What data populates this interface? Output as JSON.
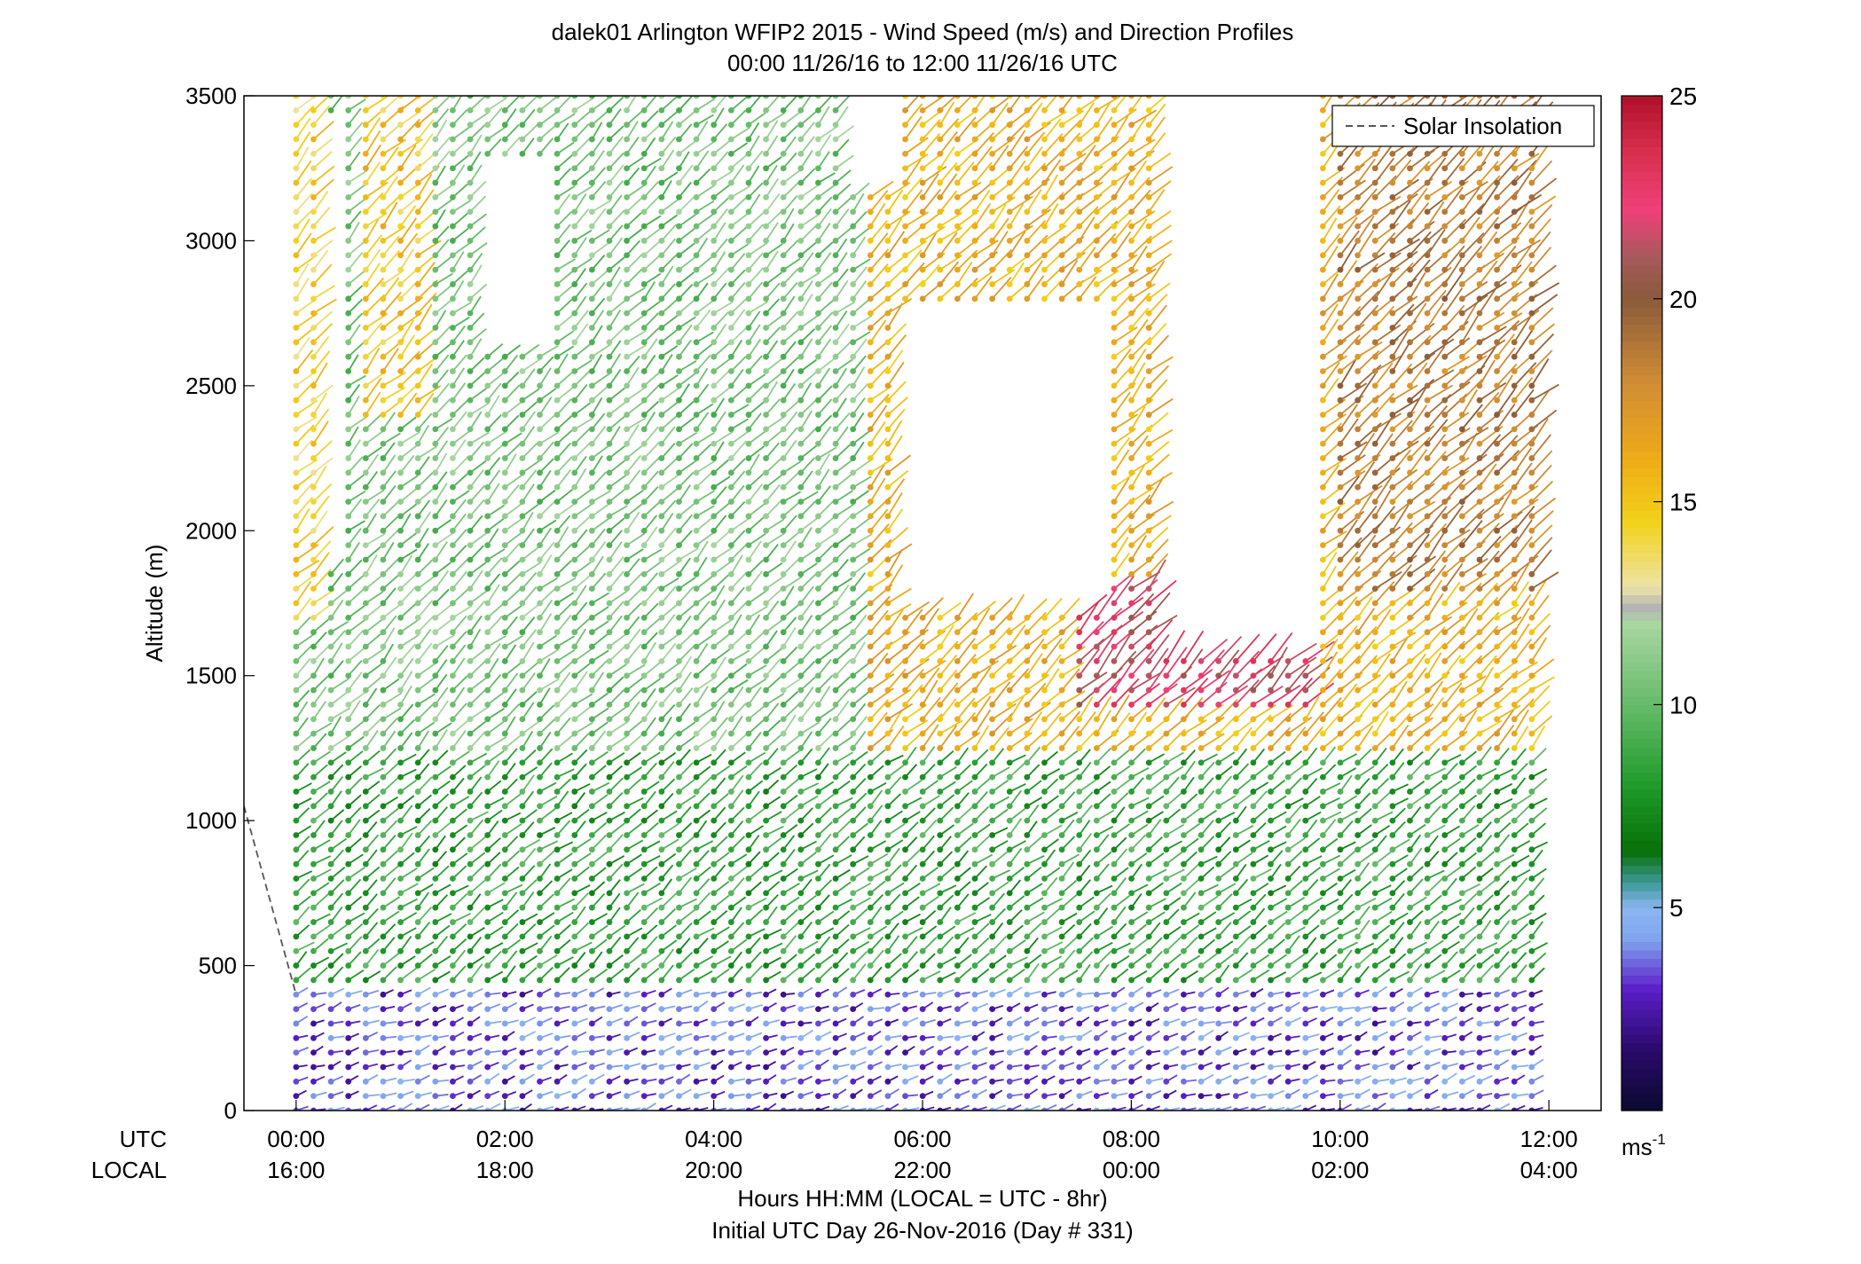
{
  "chart_data": {
    "type": "scatter",
    "title": "dalek01 Arlington WFIP2 2015 - Wind Speed (m/s) and Direction Profiles",
    "subtitle": "00:00 11/26/16 to 12:00 11/26/16  UTC",
    "ylabel": "Altitude (m)",
    "xlabel": "Hours HH:MM  (LOCAL = UTC - 8hr)",
    "xlabel2": "Initial UTC Day 26-Nov-2016 (Day # 331)",
    "row_label_utc": "UTC",
    "row_label_local": "LOCAL",
    "xlim": [
      -0.5,
      12.5
    ],
    "ylim": [
      0,
      3500
    ],
    "x_ticks": [
      0,
      2,
      4,
      6,
      8,
      10,
      12
    ],
    "x_tick_labels_utc": [
      "00:00",
      "02:00",
      "04:00",
      "06:00",
      "08:00",
      "10:00",
      "12:00"
    ],
    "x_tick_labels_local": [
      "16:00",
      "18:00",
      "20:00",
      "22:00",
      "00:00",
      "02:00",
      "04:00"
    ],
    "y_ticks": [
      0,
      500,
      1000,
      1500,
      2000,
      2500,
      3000,
      3500
    ],
    "y_tick_labels": [
      "0",
      "500",
      "1000",
      "1500",
      "2000",
      "2500",
      "3000",
      "3500"
    ],
    "legend": {
      "placement": "top-right",
      "entries": [
        "Solar Insolation"
      ]
    },
    "solar_insolation_line": {
      "x": [
        -0.5,
        0.0
      ],
      "y": [
        1050,
        400
      ],
      "style": "dashed",
      "color": "#555555"
    },
    "colorbar": {
      "range": [
        0,
        25
      ],
      "tick_values": [
        5,
        10,
        15,
        20,
        25
      ],
      "tick_labels": [
        "5",
        "10",
        "15",
        "20",
        "25"
      ],
      "unit_label": "ms",
      "unit_exponent": "-1",
      "color_stops": [
        [
          0.0,
          "#0b0a30"
        ],
        [
          1.5,
          "#2a0a6a"
        ],
        [
          3.0,
          "#5b1fc9"
        ],
        [
          4.2,
          "#7fa3ee"
        ],
        [
          5.0,
          "#8cb6f0"
        ],
        [
          5.6,
          "#3e9a9a"
        ],
        [
          6.4,
          "#087008"
        ],
        [
          8.0,
          "#1f9a2a"
        ],
        [
          10.0,
          "#66bb6a"
        ],
        [
          12.0,
          "#a8d6a0"
        ],
        [
          12.4,
          "#b4b4b4"
        ],
        [
          12.9,
          "#ede3a8"
        ],
        [
          14.5,
          "#f2d21a"
        ],
        [
          16.0,
          "#efac18"
        ],
        [
          18.0,
          "#cf8c36"
        ],
        [
          20.0,
          "#8a5a3a"
        ],
        [
          21.0,
          "#a55a5a"
        ],
        [
          22.2,
          "#f0407a"
        ],
        [
          23.6,
          "#d8304e"
        ],
        [
          25.0,
          "#b0102a"
        ]
      ]
    },
    "profiles": {
      "time_start": 0.0,
      "time_end": 12.0,
      "time_step": 0.1667,
      "altitude_step": 50,
      "max_altitude": 3500,
      "speed_regions": [
        {
          "alt_range": [
            0,
            420
          ],
          "speed": 3.5
        },
        {
          "alt_range": [
            420,
            1250
          ],
          "speed": 8.5
        },
        {
          "alt_range": [
            1250,
            3500
          ],
          "speed": 10.5
        },
        {
          "time_range": [
            0,
            0.3
          ],
          "alt_range": [
            1700,
            3500
          ],
          "speed": 14.5
        },
        {
          "time_range": [
            0.6,
            1.3
          ],
          "alt_range": [
            2400,
            3500
          ],
          "speed": 15.0
        },
        {
          "time_range": [
            5.5,
            12.0
          ],
          "alt_range": [
            1250,
            3500
          ],
          "speed": 16.0
        },
        {
          "time_range": [
            7.5,
            9.8
          ],
          "alt_range": [
            1400,
            1800
          ],
          "speed": 22.0
        },
        {
          "time_range": [
            10.0,
            12.0
          ],
          "alt_range": [
            1800,
            3500
          ],
          "speed": 18.5
        }
      ],
      "missing_regions": [
        {
          "time_range": [
            1.8,
            2.4
          ],
          "alt_range": [
            2650,
            3250
          ]
        },
        {
          "time_range": [
            5.8,
            7.8
          ],
          "alt_range": [
            1750,
            2750
          ]
        },
        {
          "time_range": [
            8.3,
            9.7
          ],
          "alt_range": [
            1600,
            3500
          ]
        },
        {
          "time_range": [
            5.2,
            5.8
          ],
          "alt_range": [
            3200,
            3500
          ]
        },
        {
          "time_range": [
            0.3,
            0.5
          ],
          "alt_range": [
            1900,
            3400
          ]
        }
      ],
      "direction_deg": {
        "near_surface": 250,
        "mid": 230,
        "upper": 225
      }
    }
  }
}
